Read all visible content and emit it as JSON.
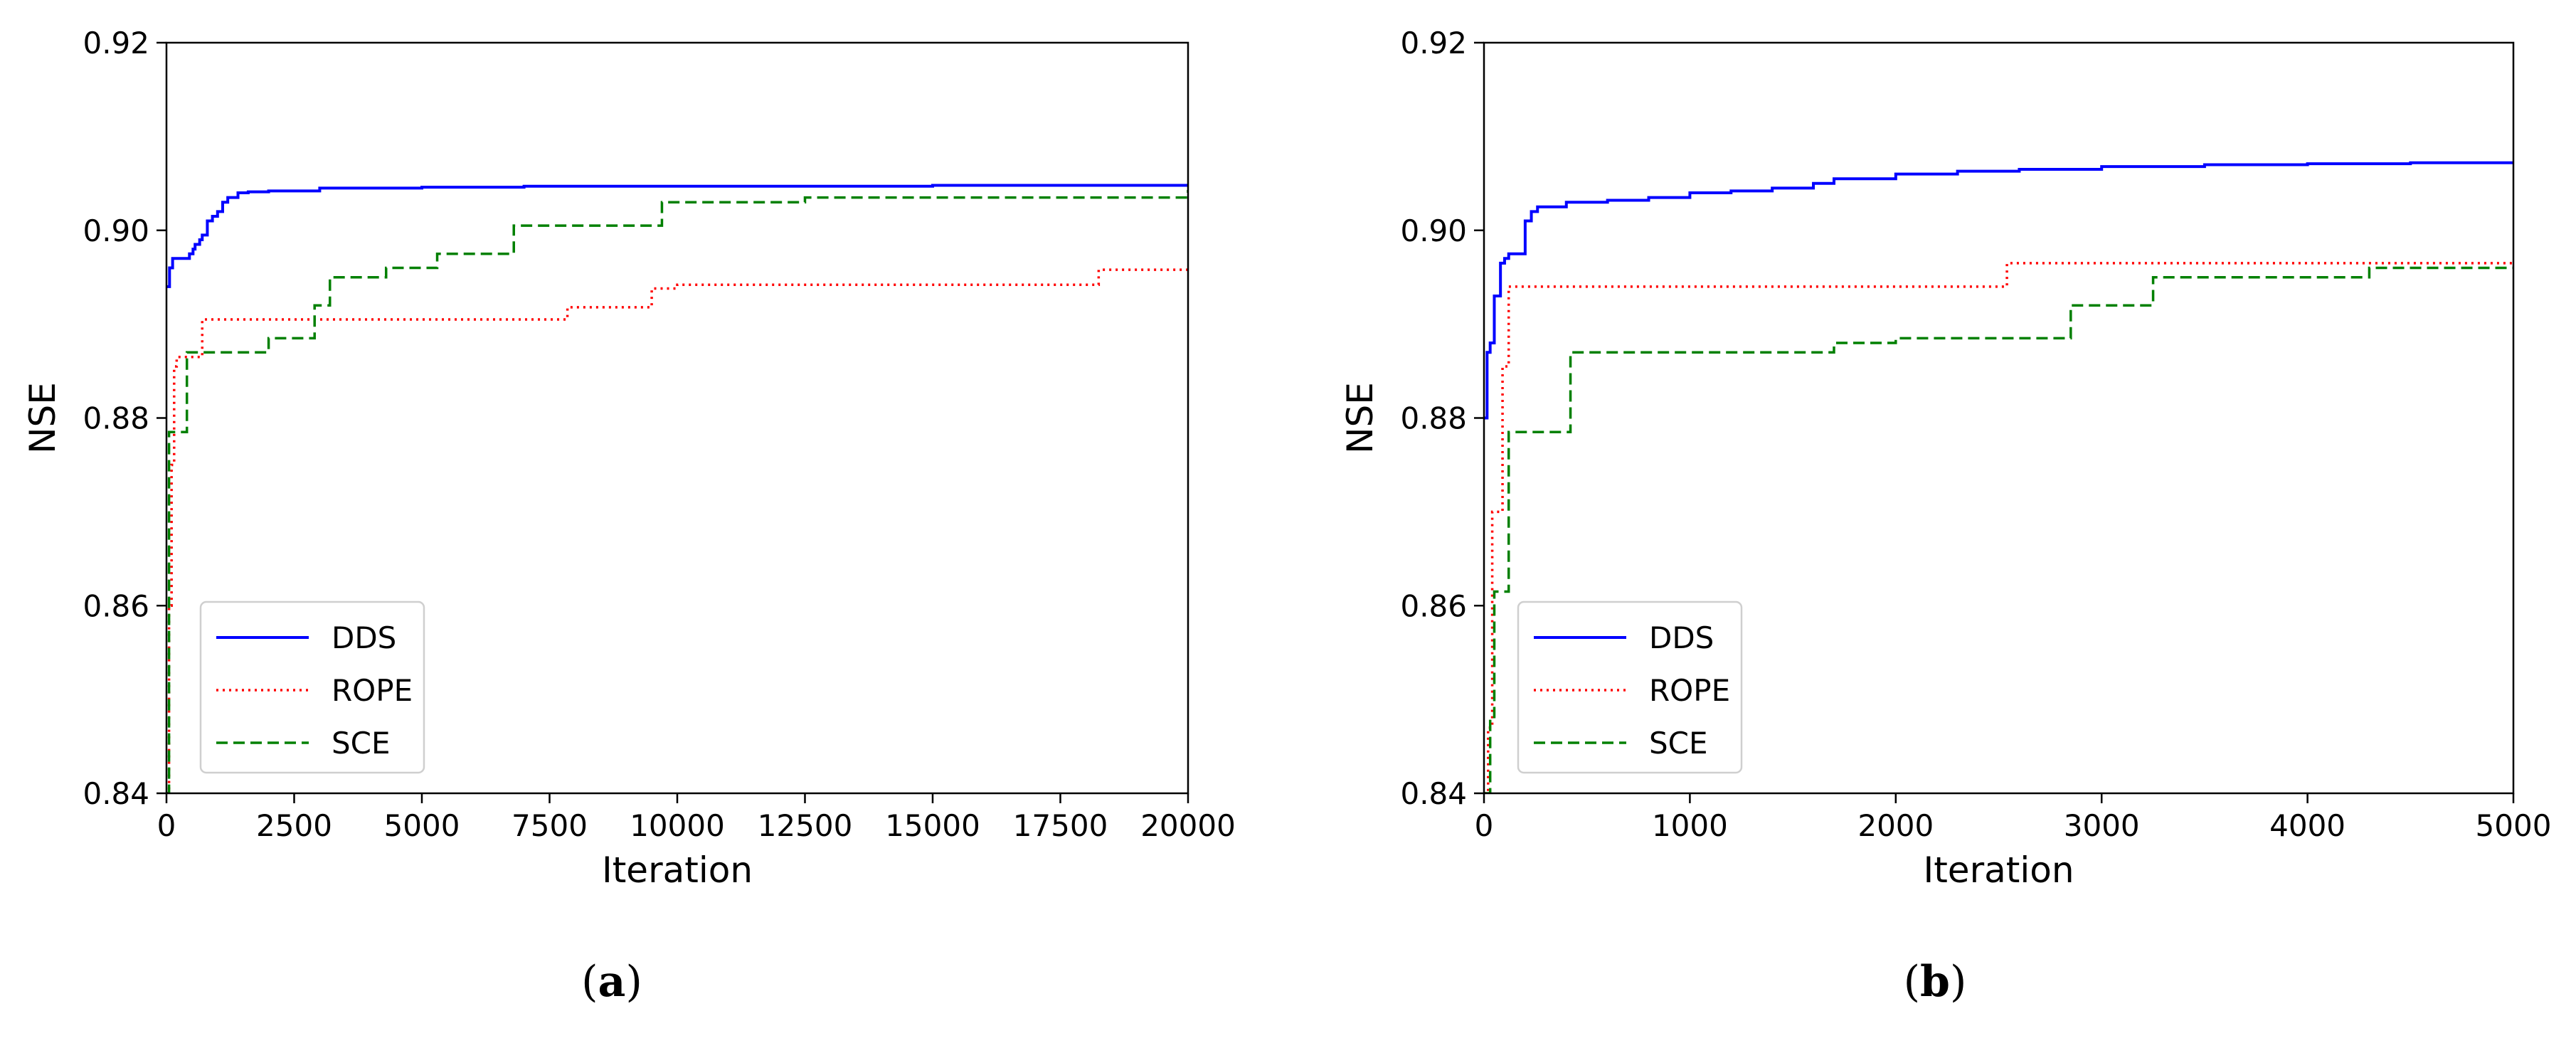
{
  "chart_data": [
    {
      "type": "line",
      "panel_label": "a",
      "xlabel": "Iteration",
      "ylabel": "NSE",
      "xlim": [
        0,
        20000
      ],
      "ylim": [
        0.84,
        0.92
      ],
      "xticks": [
        "0",
        "2500",
        "5000",
        "7500",
        "10000",
        "12500",
        "15000",
        "17500",
        "20000"
      ],
      "yticks": [
        "0.84",
        "0.86",
        "0.88",
        "0.90",
        "0.92"
      ],
      "grid": false,
      "legend_position": "bottom-left",
      "series": [
        {
          "name": "DDS",
          "color": "#0000ff",
          "style": "solid",
          "x": [
            0,
            60,
            120,
            300,
            450,
            520,
            560,
            650,
            700,
            800,
            900,
            1000,
            1100,
            1200,
            1400,
            1600,
            2000,
            3000,
            5000,
            7000,
            10000,
            15000,
            20000
          ],
          "y": [
            0.894,
            0.896,
            0.897,
            0.897,
            0.8975,
            0.898,
            0.8985,
            0.899,
            0.8995,
            0.901,
            0.9015,
            0.902,
            0.903,
            0.9035,
            0.904,
            0.9041,
            0.9042,
            0.9045,
            0.9046,
            0.9047,
            0.9047,
            0.9048,
            0.9048
          ]
        },
        {
          "name": "ROPE",
          "color": "#ff0000",
          "style": "dotted",
          "x": [
            0,
            50,
            100,
            150,
            200,
            700,
            1000,
            2700,
            7800,
            7850,
            9450,
            9500,
            10000,
            18200,
            18250,
            20000
          ],
          "y": [
            0.84,
            0.86,
            0.875,
            0.8855,
            0.8865,
            0.8905,
            0.8905,
            0.8905,
            0.8905,
            0.8918,
            0.8918,
            0.8938,
            0.8942,
            0.8942,
            0.8958,
            0.8958
          ]
        },
        {
          "name": "SCE",
          "color": "#008000",
          "style": "dashed",
          "x": [
            0,
            50,
            100,
            150,
            200,
            380,
            400,
            1700,
            2000,
            2700,
            2900,
            3200,
            4300,
            5300,
            6800,
            9700,
            12500,
            20000
          ],
          "y": [
            0.84,
            0.8785,
            0.8785,
            0.8785,
            0.8785,
            0.8785,
            0.887,
            0.887,
            0.8885,
            0.8885,
            0.892,
            0.895,
            0.896,
            0.8975,
            0.9005,
            0.903,
            0.9035,
            0.9043
          ]
        }
      ]
    },
    {
      "type": "line",
      "panel_label": "b",
      "xlabel": "Iteration",
      "ylabel": "NSE",
      "xlim": [
        0,
        5000
      ],
      "ylim": [
        0.84,
        0.92
      ],
      "xticks": [
        "0",
        "1000",
        "2000",
        "3000",
        "4000",
        "5000"
      ],
      "yticks": [
        "0.84",
        "0.86",
        "0.88",
        "0.90",
        "0.92"
      ],
      "grid": false,
      "legend_position": "bottom-left",
      "series": [
        {
          "name": "DDS",
          "color": "#0000ff",
          "style": "solid",
          "x": [
            0,
            15,
            30,
            50,
            80,
            100,
            120,
            180,
            200,
            230,
            260,
            400,
            600,
            800,
            1000,
            1200,
            1400,
            1600,
            1700,
            2000,
            2300,
            2600,
            3000,
            3500,
            4000,
            4500,
            5000
          ],
          "y": [
            0.88,
            0.887,
            0.888,
            0.893,
            0.8965,
            0.897,
            0.8975,
            0.8975,
            0.901,
            0.902,
            0.9025,
            0.903,
            0.9032,
            0.9035,
            0.904,
            0.9042,
            0.9045,
            0.905,
            0.9055,
            0.906,
            0.9063,
            0.9065,
            0.9068,
            0.907,
            0.9071,
            0.9072,
            0.9073
          ]
        },
        {
          "name": "ROPE",
          "color": "#ff0000",
          "style": "dotted",
          "x": [
            0,
            20,
            40,
            60,
            90,
            120,
            2500,
            2540,
            4300,
            5000
          ],
          "y": [
            0.84,
            0.847,
            0.87,
            0.87,
            0.8855,
            0.894,
            0.894,
            0.8965,
            0.8965,
            0.8965
          ]
        },
        {
          "name": "SCE",
          "color": "#008000",
          "style": "dashed",
          "x": [
            0,
            30,
            50,
            80,
            100,
            120,
            400,
            420,
            1700,
            2000,
            2800,
            2850,
            3200,
            3250,
            4200,
            4300,
            5000
          ],
          "y": [
            0.84,
            0.848,
            0.8615,
            0.8615,
            0.8615,
            0.8785,
            0.8785,
            0.887,
            0.888,
            0.8885,
            0.8885,
            0.892,
            0.892,
            0.895,
            0.895,
            0.896,
            0.896
          ]
        }
      ]
    }
  ]
}
